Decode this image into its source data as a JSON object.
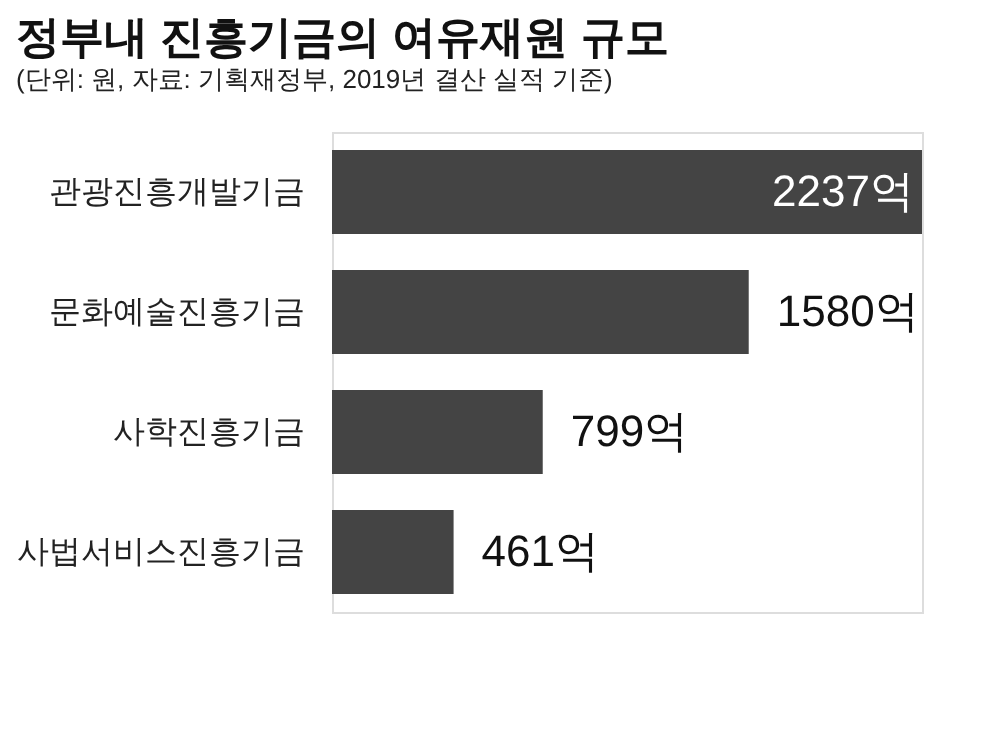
{
  "chart_data": {
    "type": "bar",
    "orientation": "horizontal",
    "title": "정부내 진흥기금의 여유재원 규모",
    "subtitle": "(단위: 원, 자료: 기획재정부, 2019년 결산 실적 기준)",
    "categories": [
      "관광진흥개발기금",
      "문화예술진흥기금",
      "사학진흥기금",
      "사법서비스진흥기금"
    ],
    "values": [
      2237,
      1580,
      799,
      461
    ],
    "value_labels": [
      "2237억",
      "1580억",
      "799억",
      "461억"
    ],
    "color": "#444444"
  }
}
